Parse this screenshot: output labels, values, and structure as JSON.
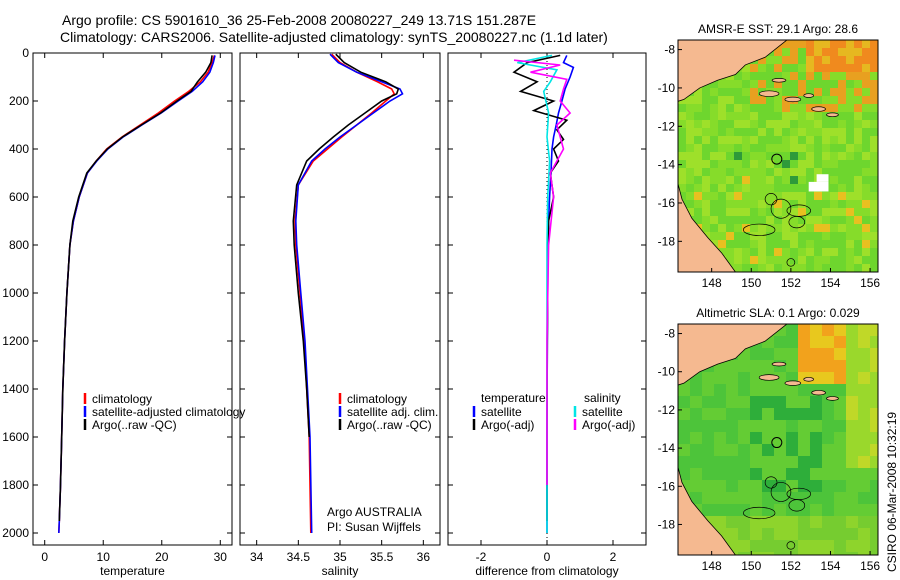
{
  "title": {
    "line1": "Argo profile: CS 5901610_36 25-Feb-2008 20080227_249 13.71S 151.287E",
    "line2": "Climatology: CARS2006. Satellite-adjusted climatology: synTS_20080227.nc (1.1d later)"
  },
  "credit": "CSIRO 06-Mar-2008 10:32:19",
  "colors": {
    "climatology": "#ff0000",
    "satellite": "#0000ff",
    "argo": "#000000",
    "sat_diff_salt": "#00e5e5",
    "argo_diff_salt": "#ff00ff",
    "land": "#f5b990",
    "sea_green": "#2db82d"
  },
  "chart_data": [
    {
      "type": "line",
      "name": "temperature-profile",
      "xlabel": "temperature",
      "ylabel": "",
      "xlim": [
        -2,
        32
      ],
      "ylim": [
        2050,
        0
      ],
      "y_inverted": true,
      "xticks": [
        0,
        10,
        20,
        30
      ],
      "yticks": [
        0,
        200,
        400,
        600,
        800,
        1000,
        1200,
        1400,
        1600,
        1800,
        2000
      ],
      "legend": [
        "climatology",
        "satellite-adjusted climatology",
        "Argo(..raw -QC)"
      ],
      "series": [
        {
          "name": "climatology",
          "color": "#ff0000",
          "x": [
            29.0,
            28.6,
            27.9,
            26.6,
            24.6,
            22.2,
            19.4,
            16.3,
            13.2,
            10.6,
            8.8,
            7.3,
            5.9,
            4.9,
            4.3,
            3.8,
            3.4,
            3.1,
            2.9,
            2.7,
            2.5,
            2.4
          ],
          "y": [
            10,
            40,
            80,
            120,
            160,
            200,
            250,
            300,
            350,
            400,
            450,
            500,
            600,
            700,
            800,
            1000,
            1200,
            1400,
            1600,
            1800,
            1950,
            2000
          ]
        },
        {
          "name": "satellite",
          "color": "#0000ff",
          "x": [
            29.1,
            28.8,
            28.2,
            27.0,
            25.2,
            22.8,
            19.9,
            16.6,
            13.4,
            10.8,
            8.9,
            7.3,
            5.9,
            4.9,
            4.3,
            3.8,
            3.4,
            3.1,
            2.9,
            2.7,
            2.5,
            2.4
          ],
          "y": [
            10,
            40,
            80,
            120,
            160,
            200,
            250,
            300,
            350,
            400,
            450,
            500,
            600,
            700,
            800,
            1000,
            1200,
            1400,
            1600,
            1800,
            1950,
            2000
          ]
        },
        {
          "name": "argo",
          "color": "#000000",
          "x": [
            28.6,
            28.4,
            27.5,
            26.1,
            25.0,
            22.6,
            19.8,
            16.5,
            13.3,
            10.7,
            8.8,
            7.2,
            5.8,
            4.8,
            4.3,
            3.8,
            3.4,
            3.1,
            2.9,
            2.7,
            2.5
          ],
          "y": [
            10,
            40,
            80,
            120,
            160,
            200,
            250,
            300,
            350,
            400,
            450,
            500,
            600,
            700,
            800,
            1000,
            1200,
            1400,
            1600,
            1800,
            1950
          ]
        }
      ]
    },
    {
      "type": "line",
      "name": "salinity-profile",
      "xlabel": "salinity",
      "ylabel": "",
      "xlim": [
        33.8,
        36.2
      ],
      "ylim": [
        2050,
        0
      ],
      "y_inverted": true,
      "xticks": [
        34,
        34.5,
        35,
        35.5,
        36
      ],
      "xticklabels": [
        "34",
        "34.5",
        "35",
        "35.5",
        "36"
      ],
      "legend": [
        "climatology",
        "satellite adj. clim.",
        "Argo(..raw -QC)"
      ],
      "annotation": [
        "Argo AUSTRALIA",
        "PI: Susan Wijffels"
      ],
      "series": [
        {
          "name": "climatology",
          "color": "#ff0000",
          "x": [
            34.9,
            35.0,
            35.2,
            35.45,
            35.62,
            35.65,
            35.55,
            35.38,
            35.2,
            35.02,
            34.85,
            34.68,
            34.5,
            34.46,
            34.47,
            34.52,
            34.57,
            34.6,
            34.63,
            34.65
          ],
          "y": [
            5,
            40,
            80,
            120,
            150,
            170,
            200,
            250,
            300,
            350,
            400,
            450,
            550,
            700,
            800,
            1000,
            1200,
            1400,
            1600,
            2000
          ]
        },
        {
          "name": "satellite",
          "color": "#0000ff",
          "x": [
            34.88,
            34.98,
            35.2,
            35.5,
            35.72,
            35.75,
            35.6,
            35.4,
            35.2,
            35.0,
            34.82,
            34.66,
            34.5,
            34.47,
            34.48,
            34.53,
            34.58,
            34.61,
            34.64,
            34.66
          ],
          "y": [
            5,
            40,
            80,
            120,
            150,
            170,
            200,
            250,
            300,
            350,
            400,
            450,
            550,
            700,
            800,
            1000,
            1200,
            1400,
            1600,
            2000
          ]
        },
        {
          "name": "argo",
          "color": "#000000",
          "x": [
            34.95,
            35.05,
            35.25,
            35.55,
            35.7,
            35.68,
            35.5,
            35.3,
            35.1,
            34.92,
            34.75,
            34.6,
            34.48,
            34.44,
            34.45,
            34.5,
            34.56,
            34.6,
            34.63
          ],
          "y": [
            5,
            40,
            80,
            120,
            150,
            170,
            200,
            250,
            300,
            350,
            400,
            450,
            550,
            700,
            800,
            1000,
            1200,
            1400,
            1600
          ]
        }
      ]
    },
    {
      "type": "line",
      "name": "difference-profile",
      "xlabel": "difference from climatology",
      "ylabel": "",
      "xlim": [
        -3,
        3
      ],
      "ylim": [
        2050,
        0
      ],
      "y_inverted": true,
      "xticks": [
        -2,
        0,
        2
      ],
      "legend_headers": [
        "temperature",
        "salinity"
      ],
      "legend": [
        "satellite",
        "Argo(-adj)",
        "satellite",
        "Argo(-adj)"
      ],
      "series": [
        {
          "name": "temperature-satellite",
          "color": "#0000ff",
          "x": [
            0.6,
            0.5,
            0.8,
            0.7,
            0.55,
            0.45,
            0.35,
            0.28,
            0.2,
            0.15,
            0.12,
            0.08,
            0.05,
            0.03,
            0.02,
            0.01,
            0.0,
            0.0
          ],
          "y": [
            10,
            40,
            60,
            100,
            150,
            200,
            250,
            300,
            350,
            400,
            500,
            600,
            700,
            800,
            1000,
            1200,
            1600,
            2000
          ]
        },
        {
          "name": "temperature-argo",
          "color": "#000000",
          "x": [
            0.4,
            -0.6,
            -1.0,
            -0.3,
            -0.8,
            0.2,
            -0.4,
            0.6,
            0.3,
            0.5,
            0.2,
            0.35,
            0.1,
            0.2,
            0.05,
            0.02,
            0.01,
            0.0,
            0.0
          ],
          "y": [
            10,
            40,
            80,
            120,
            160,
            200,
            240,
            280,
            320,
            360,
            400,
            450,
            500,
            600,
            700,
            900,
            1200,
            1600,
            1950
          ]
        },
        {
          "name": "salinity-satellite",
          "color": "#00e5e5",
          "x": [
            0.15,
            -0.9,
            0.3,
            0.1,
            -0.1,
            0.05,
            0.0,
            0.08,
            0.02,
            0.0,
            0.0,
            0.0
          ],
          "y": [
            10,
            40,
            70,
            120,
            160,
            250,
            350,
            450,
            600,
            800,
            1200,
            2000
          ]
        },
        {
          "name": "salinity-argo",
          "color": "#ff00ff",
          "x": [
            -1.0,
            0.4,
            -0.5,
            0.6,
            0.5,
            0.4,
            0.7,
            0.3,
            0.5,
            0.1,
            0.2,
            0.05,
            0.0,
            0.0
          ],
          "y": [
            30,
            50,
            80,
            110,
            150,
            200,
            250,
            300,
            400,
            500,
            600,
            800,
            1200,
            1800
          ]
        }
      ]
    },
    {
      "type": "heatmap",
      "name": "sst-map",
      "title": "AMSR-E SST: 29.1 Argo: 28.6",
      "xlim": [
        146.3,
        156.4
      ],
      "ylim": [
        -19.6,
        -7.5
      ],
      "xticks": [
        148,
        150,
        152,
        154,
        156
      ],
      "yticks": [
        -8,
        -10,
        -12,
        -14,
        -16,
        -18
      ],
      "argo_location": [
        151.29,
        -13.71
      ]
    },
    {
      "type": "heatmap",
      "name": "sla-map",
      "title": "Altimetric SLA: 0.1 Argo: 0.029",
      "xlim": [
        146.3,
        156.4
      ],
      "ylim": [
        -19.6,
        -7.5
      ],
      "xticks": [
        148,
        150,
        152,
        154,
        156
      ],
      "yticks": [
        -8,
        -10,
        -12,
        -14,
        -16,
        -18
      ],
      "argo_location": [
        151.29,
        -13.71
      ]
    }
  ]
}
